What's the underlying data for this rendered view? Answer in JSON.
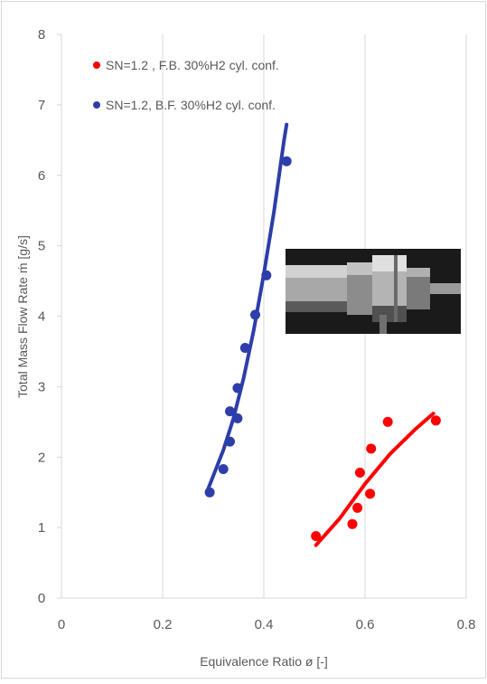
{
  "chart_data": {
    "type": "scatter",
    "xlabel": "Equivalence Ratio ø [-]",
    "ylabel": "Total Mass Flow Rate ṁ [g/s]",
    "xlim": [
      0,
      0.8
    ],
    "ylim": [
      0,
      8
    ],
    "x_ticks": [
      "0",
      "0.2",
      "0.4",
      "0.6",
      "0.8"
    ],
    "y_ticks": [
      "0",
      "1",
      "2",
      "3",
      "4",
      "5",
      "6",
      "7",
      "8"
    ],
    "grid": "vertical",
    "legend_position": "top-left",
    "series": [
      {
        "name": "SN=1.2 , F.B. 30%H2 cyl. conf.",
        "color": "#ff0000",
        "points": [
          {
            "x": 0.503,
            "y": 0.88
          },
          {
            "x": 0.575,
            "y": 1.05
          },
          {
            "x": 0.585,
            "y": 1.28
          },
          {
            "x": 0.59,
            "y": 1.78
          },
          {
            "x": 0.61,
            "y": 1.48
          },
          {
            "x": 0.612,
            "y": 2.12
          },
          {
            "x": 0.645,
            "y": 2.5
          },
          {
            "x": 0.74,
            "y": 2.52
          }
        ],
        "trendline": [
          {
            "x": 0.503,
            "y": 0.75
          },
          {
            "x": 0.55,
            "y": 1.13
          },
          {
            "x": 0.6,
            "y": 1.62
          },
          {
            "x": 0.65,
            "y": 2.05
          },
          {
            "x": 0.7,
            "y": 2.4
          },
          {
            "x": 0.735,
            "y": 2.62
          }
        ]
      },
      {
        "name": "SN=1.2, B.F. 30%H2 cyl. conf.",
        "color": "#2d3eaa",
        "points": [
          {
            "x": 0.293,
            "y": 1.5
          },
          {
            "x": 0.32,
            "y": 1.83
          },
          {
            "x": 0.333,
            "y": 2.22
          },
          {
            "x": 0.333,
            "y": 2.65
          },
          {
            "x": 0.348,
            "y": 2.55
          },
          {
            "x": 0.348,
            "y": 2.98
          },
          {
            "x": 0.363,
            "y": 3.55
          },
          {
            "x": 0.383,
            "y": 4.02
          },
          {
            "x": 0.405,
            "y": 4.58
          },
          {
            "x": 0.445,
            "y": 6.2
          }
        ],
        "trendline": [
          {
            "x": 0.29,
            "y": 1.55
          },
          {
            "x": 0.32,
            "y": 2.1
          },
          {
            "x": 0.34,
            "y": 2.55
          },
          {
            "x": 0.36,
            "y": 3.12
          },
          {
            "x": 0.38,
            "y": 3.8
          },
          {
            "x": 0.4,
            "y": 4.6
          },
          {
            "x": 0.42,
            "y": 5.48
          },
          {
            "x": 0.44,
            "y": 6.5
          },
          {
            "x": 0.445,
            "y": 6.72
          }
        ]
      }
    ]
  },
  "photo": {
    "icon": "burner-photo-icon",
    "colors": {
      "background": "#1c1c1c",
      "metal_light": "#cfcfcf",
      "metal_dark": "#4a4a4a"
    }
  },
  "colors": {
    "axis": "#d9d9d9",
    "text": "#595959",
    "border": "#d9d9d9"
  }
}
